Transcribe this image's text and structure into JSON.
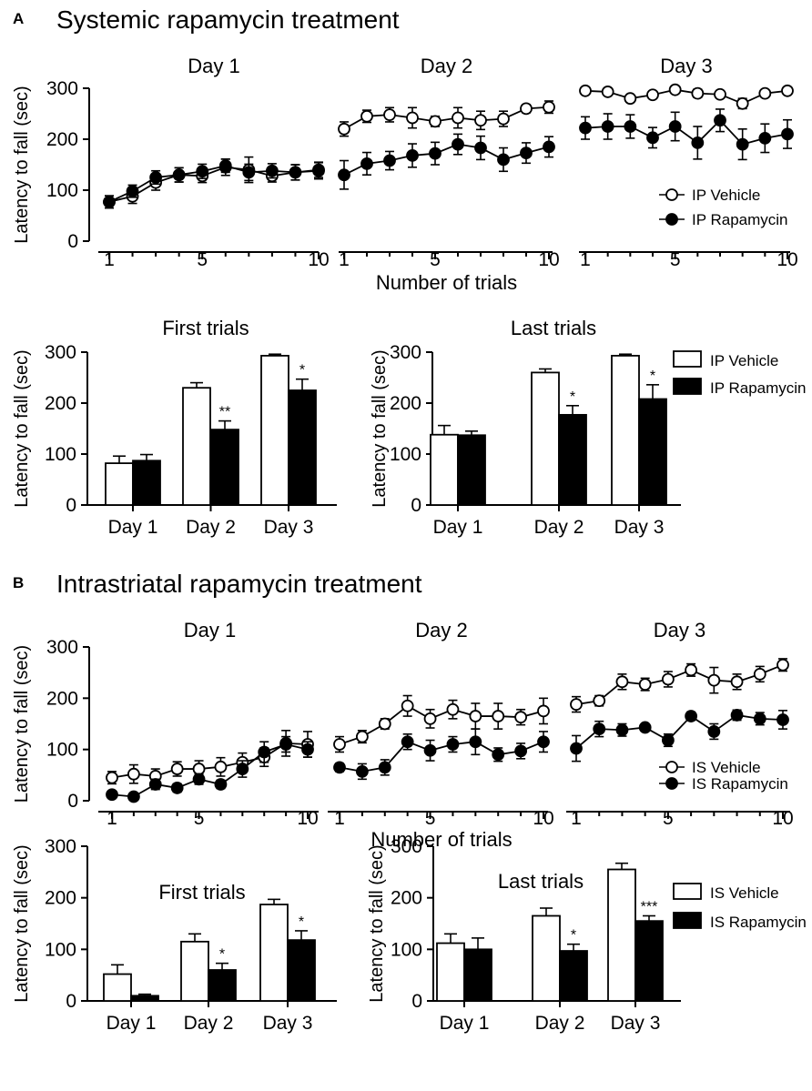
{
  "figure": {
    "panel_a": {
      "label": "A",
      "title": "Systemic rapamycin treatment"
    },
    "panel_b": {
      "label": "B",
      "title": "Intrastriatal rapamycin treatment"
    }
  },
  "colors": {
    "ink": "#000000",
    "open_fill": "#ffffff",
    "solid_fill": "#000000"
  },
  "chart_data": [
    {
      "id": "A_line",
      "type": "line",
      "panel": "A",
      "ylabel": "Latency to fall (sec)",
      "xlabel": "Number of trials",
      "ylim": [
        0,
        300
      ],
      "yticks": [
        0,
        100,
        200,
        300
      ],
      "x": [
        1,
        2,
        3,
        4,
        5,
        6,
        7,
        8,
        9,
        10
      ],
      "xticks": [
        1,
        5,
        10
      ],
      "legend": [
        "IP Vehicle",
        "IP Rapamycin"
      ],
      "legend_position": "right",
      "days": [
        {
          "label": "Day 1",
          "series": [
            {
              "name": "IP Vehicle",
              "marker": "open",
              "values": [
                77,
                88,
                115,
                130,
                128,
                145,
                140,
                128,
                135,
                138
              ],
              "errors": [
                12,
                14,
                15,
                14,
                13,
                16,
                25,
                12,
                15,
                16
              ]
            },
            {
              "name": "IP Rapamycin",
              "marker": "filled",
              "values": [
                77,
                98,
                125,
                130,
                137,
                148,
                135,
                138,
                135,
                140
              ],
              "errors": [
                12,
                12,
                13,
                14,
                14,
                13,
                16,
                14,
                15,
                15
              ]
            }
          ]
        },
        {
          "label": "Day 2",
          "series": [
            {
              "name": "IP Vehicle",
              "marker": "open",
              "values": [
                220,
                245,
                248,
                242,
                235,
                242,
                237,
                240,
                260,
                263
              ],
              "errors": [
                14,
                12,
                14,
                20,
                10,
                20,
                18,
                15,
                8,
                12
              ]
            },
            {
              "name": "IP Rapamycin",
              "marker": "filled",
              "values": [
                130,
                152,
                158,
                168,
                172,
                190,
                183,
                160,
                173,
                185
              ],
              "errors": [
                28,
                22,
                18,
                23,
                22,
                20,
                23,
                23,
                20,
                20
              ]
            }
          ]
        },
        {
          "label": "Day 3",
          "series": [
            {
              "name": "IP Vehicle",
              "marker": "open",
              "values": [
                295,
                293,
                280,
                287,
                297,
                290,
                288,
                270,
                290,
                295
              ],
              "errors": [
                3,
                3,
                7,
                6,
                3,
                8,
                5,
                10,
                5,
                3
              ]
            },
            {
              "name": "IP Rapamycin",
              "marker": "filled",
              "values": [
                222,
                225,
                225,
                203,
                225,
                193,
                237,
                190,
                202,
                210
              ],
              "errors": [
                22,
                25,
                23,
                20,
                28,
                32,
                22,
                30,
                28,
                28
              ]
            }
          ]
        }
      ]
    },
    {
      "id": "A_first",
      "type": "bar",
      "panel": "A",
      "title": "First trials",
      "ylabel": "Latency to fall (sec)",
      "ylim": [
        0,
        300
      ],
      "yticks": [
        0,
        100,
        200,
        300
      ],
      "categories": [
        "Day 1",
        "Day 2",
        "Day 3"
      ],
      "series": [
        {
          "name": "IP Vehicle",
          "fill": "open",
          "values": [
            82,
            230,
            293
          ],
          "errors": [
            14,
            10,
            3
          ]
        },
        {
          "name": "IP Rapamycin",
          "fill": "filled",
          "values": [
            87,
            148,
            225
          ],
          "errors": [
            12,
            17,
            22
          ]
        }
      ],
      "significance": [
        "",
        "**",
        "*"
      ]
    },
    {
      "id": "A_last",
      "type": "bar",
      "panel": "A",
      "title": "Last trials",
      "ylabel": "Latency to fall (sec)",
      "ylim": [
        0,
        300
      ],
      "yticks": [
        0,
        100,
        200,
        300
      ],
      "categories": [
        "Day 1",
        "Day 2",
        "Day 3"
      ],
      "series": [
        {
          "name": "IP Vehicle",
          "fill": "open",
          "values": [
            138,
            260,
            293
          ],
          "errors": [
            18,
            7,
            3
          ]
        },
        {
          "name": "IP Rapamycin",
          "fill": "filled",
          "values": [
            137,
            177,
            208
          ],
          "errors": [
            8,
            18,
            28
          ]
        }
      ],
      "significance": [
        "",
        "*",
        "*"
      ],
      "legend": [
        "IP Vehicle",
        "IP Rapamycin"
      ],
      "legend_position": "right"
    },
    {
      "id": "B_line",
      "type": "line",
      "panel": "B",
      "ylabel": "Latency to fall (sec)",
      "xlabel": "Number of trials",
      "ylim": [
        0,
        300
      ],
      "yticks": [
        0,
        100,
        200,
        300
      ],
      "x": [
        1,
        2,
        3,
        4,
        5,
        6,
        7,
        8,
        9,
        10
      ],
      "xticks": [
        1,
        5,
        10
      ],
      "legend": [
        "IS Vehicle",
        "IS Rapamycin"
      ],
      "legend_position": "bottom-right",
      "days": [
        {
          "label": "Day 1",
          "series": [
            {
              "name": "IS Vehicle",
              "marker": "open",
              "values": [
                45,
                52,
                48,
                62,
                62,
                66,
                75,
                85,
                112,
                110
              ],
              "errors": [
                12,
                18,
                14,
                14,
                16,
                18,
                18,
                18,
                25,
                25
              ]
            },
            {
              "name": "IS Rapamycin",
              "marker": "filled",
              "values": [
                12,
                8,
                32,
                25,
                42,
                32,
                62,
                95,
                110,
                100
              ],
              "errors": [
                5,
                4,
                10,
                8,
                10,
                8,
                16,
                20,
                15,
                15
              ]
            }
          ]
        },
        {
          "label": "Day 2",
          "series": [
            {
              "name": "IS Vehicle",
              "marker": "open",
              "values": [
                110,
                125,
                150,
                185,
                160,
                178,
                165,
                165,
                163,
                175
              ],
              "errors": [
                15,
                12,
                10,
                20,
                18,
                18,
                25,
                25,
                15,
                25
              ]
            },
            {
              "name": "IS Rapamycin",
              "marker": "filled",
              "values": [
                65,
                57,
                65,
                115,
                98,
                110,
                115,
                90,
                97,
                115
              ],
              "errors": [
                8,
                15,
                15,
                15,
                20,
                15,
                25,
                13,
                15,
                20
              ]
            }
          ]
        },
        {
          "label": "Day 3",
          "series": [
            {
              "name": "IS Vehicle",
              "marker": "open",
              "values": [
                188,
                195,
                232,
                227,
                237,
                255,
                235,
                232,
                247,
                265
              ],
              "errors": [
                15,
                10,
                15,
                12,
                15,
                12,
                25,
                15,
                15,
                12
              ]
            },
            {
              "name": "IS Rapamycin",
              "marker": "filled",
              "values": [
                102,
                140,
                138,
                143,
                118,
                165,
                135,
                167,
                160,
                158
              ],
              "errors": [
                25,
                15,
                12,
                5,
                12,
                8,
                15,
                10,
                12,
                18
              ]
            }
          ]
        }
      ]
    },
    {
      "id": "B_first",
      "type": "bar",
      "panel": "B",
      "title": "First trials",
      "ylabel": "Latency to fall (sec)",
      "ylim": [
        0,
        300
      ],
      "yticks": [
        0,
        100,
        200,
        300
      ],
      "categories": [
        "Day 1",
        "Day 2",
        "Day 3"
      ],
      "series": [
        {
          "name": "IS Vehicle",
          "fill": "open",
          "values": [
            52,
            115,
            187
          ],
          "errors": [
            18,
            15,
            10
          ]
        },
        {
          "name": "IS Rapamycin",
          "fill": "filled",
          "values": [
            10,
            60,
            118
          ],
          "errors": [
            3,
            13,
            18
          ]
        }
      ],
      "significance": [
        "",
        "*",
        "*"
      ]
    },
    {
      "id": "B_last",
      "type": "bar",
      "panel": "B",
      "title": "Last trials",
      "ylabel": "Latency to fall (sec)",
      "ylim": [
        0,
        300
      ],
      "yticks": [
        0,
        100,
        200,
        300
      ],
      "categories": [
        "Day 1",
        "Day 2",
        "Day 3"
      ],
      "series": [
        {
          "name": "IS Vehicle",
          "fill": "open",
          "values": [
            112,
            165,
            255
          ],
          "errors": [
            18,
            15,
            12
          ]
        },
        {
          "name": "IS Rapamycin",
          "fill": "filled",
          "values": [
            100,
            97,
            155
          ],
          "errors": [
            22,
            13,
            10
          ]
        }
      ],
      "significance": [
        "",
        "*",
        "***"
      ],
      "legend": [
        "IS Vehicle",
        "IS Rapamycin"
      ],
      "legend_position": "right"
    }
  ]
}
